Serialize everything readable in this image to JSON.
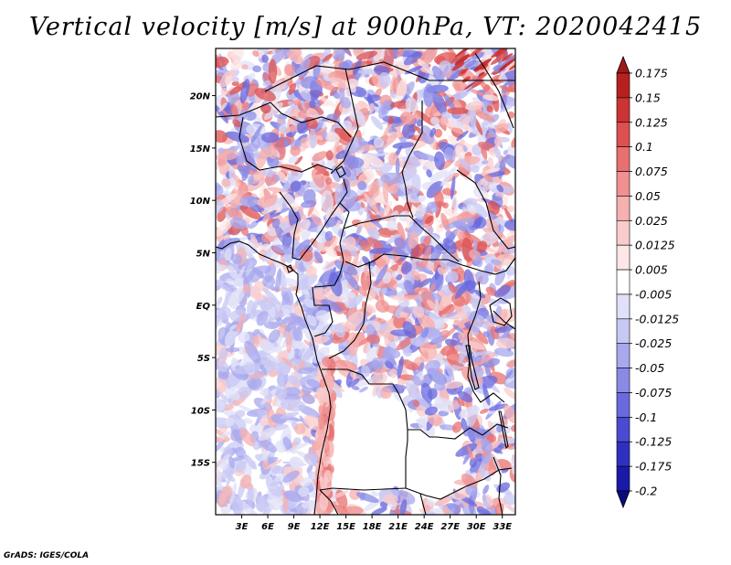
{
  "title": "Vertical velocity [m/s] at 900hPa, VT: 2020042415",
  "credit": "GrADS: IGES/COLA",
  "map": {
    "lon_range": [
      0,
      34.5
    ],
    "lat_range": [
      -20,
      24.5
    ],
    "lon_ticks": [
      3,
      6,
      9,
      12,
      15,
      18,
      21,
      24,
      27,
      30,
      33
    ],
    "lon_tick_labels": [
      "3E",
      "6E",
      "9E",
      "12E",
      "15E",
      "18E",
      "21E",
      "24E",
      "27E",
      "30E",
      "33E"
    ],
    "lat_ticks": [
      20,
      15,
      10,
      5,
      0,
      -5,
      -10,
      -15
    ],
    "lat_tick_labels": [
      "20N",
      "15N",
      "10N",
      "5N",
      "EQ",
      "5S",
      "10S",
      "15S"
    ]
  },
  "colorbar": {
    "labels": [
      "0.175",
      "0.15",
      "0.125",
      "0.1",
      "0.075",
      "0.05",
      "0.025",
      "0.0125",
      "0.005",
      "-0.005",
      "-0.0125",
      "-0.025",
      "-0.05",
      "-0.075",
      "-0.1",
      "-0.125",
      "-0.175",
      "-0.2"
    ],
    "colors": [
      "#a01818",
      "#b82020",
      "#cc3333",
      "#dd5050",
      "#e87070",
      "#f09090",
      "#f5b0b0",
      "#f9cccc",
      "#fce6e6",
      "#ffffff",
      "#e0e0f8",
      "#c8c8f4",
      "#a8a8ee",
      "#8a8ae6",
      "#6a6ade",
      "#4a4ad2",
      "#3030c0",
      "#1a1aa8",
      "#0a0a80"
    ]
  }
}
